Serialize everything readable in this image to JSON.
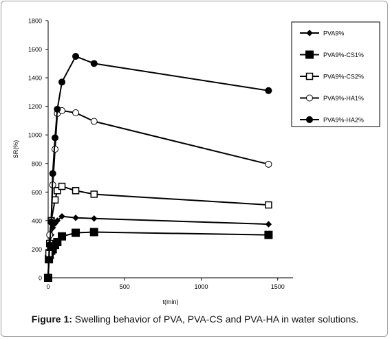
{
  "caption": {
    "label": "Figure 1:",
    "text": "Swelling behavior of PVA, PVA-CS and PVA-HA in water solutions."
  },
  "chart_data": {
    "type": "line",
    "title": "",
    "xlabel": "t(min)",
    "ylabel": "SR(%)",
    "xlim": [
      0,
      1600
    ],
    "ylim": [
      0,
      1800
    ],
    "xticks": [
      0,
      500,
      1000,
      1500
    ],
    "yticks": [
      0,
      200,
      400,
      600,
      800,
      1000,
      1200,
      1400,
      1600,
      1800
    ],
    "grid": false,
    "legend_position": "top-right",
    "series": [
      {
        "name": "PVA9%",
        "marker": "diamond-filled",
        "color": "#000000",
        "points": [
          [
            0,
            0
          ],
          [
            5,
            130
          ],
          [
            10,
            230
          ],
          [
            20,
            300
          ],
          [
            30,
            350
          ],
          [
            45,
            380
          ],
          [
            60,
            400
          ],
          [
            90,
            430
          ],
          [
            180,
            420
          ],
          [
            300,
            415
          ],
          [
            1440,
            375
          ]
        ]
      },
      {
        "name": "PVA9%-CS1%",
        "marker": "square-filled",
        "color": "#000000",
        "points": [
          [
            0,
            0
          ],
          [
            5,
            130
          ],
          [
            10,
            160
          ],
          [
            20,
            190
          ],
          [
            30,
            200
          ],
          [
            45,
            230
          ],
          [
            60,
            250
          ],
          [
            90,
            290
          ],
          [
            180,
            315
          ],
          [
            300,
            320
          ],
          [
            1440,
            300
          ]
        ]
      },
      {
        "name": "PVA9%-CS2%",
        "marker": "square-open",
        "color": "#000000",
        "points": [
          [
            0,
            0
          ],
          [
            5,
            170
          ],
          [
            10,
            240
          ],
          [
            20,
            400
          ],
          [
            45,
            545
          ],
          [
            60,
            610
          ],
          [
            90,
            640
          ],
          [
            180,
            610
          ],
          [
            300,
            585
          ],
          [
            1440,
            510
          ]
        ]
      },
      {
        "name": "PVA9%-HA1%",
        "marker": "circle-open",
        "color": "#000000",
        "points": [
          [
            0,
            0
          ],
          [
            10,
            300
          ],
          [
            20,
            400
          ],
          [
            30,
            650
          ],
          [
            45,
            900
          ],
          [
            60,
            1150
          ],
          [
            90,
            1170
          ],
          [
            180,
            1155
          ],
          [
            300,
            1095
          ],
          [
            1440,
            795
          ]
        ]
      },
      {
        "name": "PVA9%-HA2%",
        "marker": "circle-filled",
        "color": "#000000",
        "points": [
          [
            0,
            0
          ],
          [
            10,
            230
          ],
          [
            20,
            390
          ],
          [
            30,
            730
          ],
          [
            45,
            980
          ],
          [
            60,
            1180
          ],
          [
            90,
            1370
          ],
          [
            180,
            1550
          ],
          [
            300,
            1500
          ],
          [
            1440,
            1310
          ]
        ]
      }
    ]
  }
}
